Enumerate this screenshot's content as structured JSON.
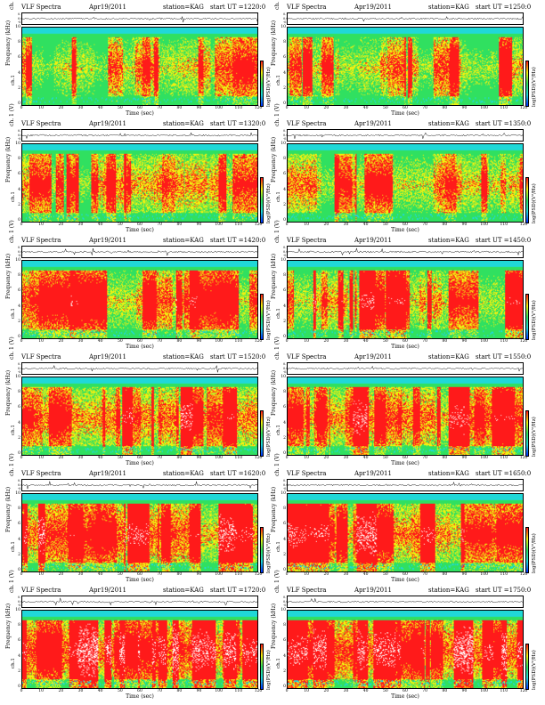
{
  "figure": {
    "panel_title_left": "VLF Spectra",
    "date": "Apr19/2011",
    "station": "station=KAG",
    "ts_label": "ch. 1 (V)",
    "ts_ticks": [
      "0.10",
      "0.00",
      "-0.10"
    ],
    "freq_label_ch": "ch.1",
    "freq_label": "Frequency (kHz)",
    "freq_ticks": [
      "10",
      "8",
      "6",
      "4",
      "2",
      "0"
    ],
    "time_label": "Time (sec)",
    "time_ticks": [
      "0",
      "10",
      "20",
      "30",
      "40",
      "50",
      "60",
      "70",
      "80",
      "90",
      "100",
      "110",
      "120"
    ],
    "colorbar_label": "log(PSD)(V²/Hz)"
  },
  "colors": {
    "red": "#ff1a1a",
    "yellow": "#f0f010",
    "green": "#30e060",
    "cyan": "#20d8d8",
    "blue": "#0030ff",
    "white": "#ffffff"
  },
  "chart_data": [
    {
      "type": "heatmap",
      "title_ut": "start  UT =1220:0",
      "intensity": 0.45
    },
    {
      "type": "heatmap",
      "title_ut": "start  UT =1250:0",
      "intensity": 0.48
    },
    {
      "type": "heatmap",
      "title_ut": "start  UT =1320:0",
      "intensity": 0.55
    },
    {
      "type": "heatmap",
      "title_ut": "start  UT =1350:0",
      "intensity": 0.58
    },
    {
      "type": "heatmap",
      "title_ut": "start  UT =1420:0",
      "intensity": 0.62
    },
    {
      "type": "heatmap",
      "title_ut": "start  UT =1450:0",
      "intensity": 0.65
    },
    {
      "type": "heatmap",
      "title_ut": "start  UT =1520:0",
      "intensity": 0.7
    },
    {
      "type": "heatmap",
      "title_ut": "start  UT =1550:0",
      "intensity": 0.72
    },
    {
      "type": "heatmap",
      "title_ut": "start  UT =1620:0",
      "intensity": 0.78
    },
    {
      "type": "heatmap",
      "title_ut": "start  UT =1650:0",
      "intensity": 0.8
    },
    {
      "type": "heatmap",
      "title_ut": "start  UT =1720:0",
      "intensity": 0.85
    },
    {
      "type": "heatmap",
      "title_ut": "start  UT =1750:0",
      "intensity": 0.86
    }
  ]
}
